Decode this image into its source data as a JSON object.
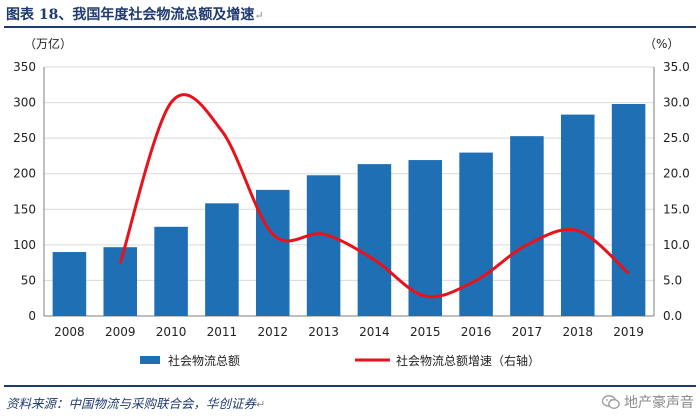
{
  "header": {
    "title": "图表 18、我国年度社会物流总额及增速"
  },
  "footer": {
    "source": "资料来源：中国物流与采购联合会，华创证券",
    "watermark": "地产豪声音"
  },
  "colors": {
    "bar": "#1f6fb5",
    "line": "#e8131a",
    "grid": "#d9d9d9",
    "axis": "#7f7f7f"
  },
  "chart_data": {
    "type": "bar",
    "categories": [
      "2008",
      "2009",
      "2010",
      "2011",
      "2012",
      "2013",
      "2014",
      "2015",
      "2016",
      "2017",
      "2018",
      "2019"
    ],
    "left_axis_unit": "（万亿）",
    "right_axis_unit": "（%）",
    "ylim_left": [
      0,
      350
    ],
    "ylim_right": [
      0,
      35
    ],
    "yticks_left": [
      "0",
      "50",
      "100",
      "150",
      "200",
      "250",
      "300",
      "350"
    ],
    "yticks_right": [
      "0.0",
      "5.0",
      "10.0",
      "15.0",
      "20.0",
      "25.0",
      "30.0",
      "35.0"
    ],
    "grid": true,
    "legend_position": "bottom",
    "series": [
      {
        "name": "社会物流总额",
        "type": "bar",
        "axis": "left",
        "values": [
          89.9,
          96.7,
          125.4,
          158.4,
          177.3,
          197.8,
          213.5,
          219.2,
          229.7,
          252.8,
          283.1,
          298.0
        ]
      },
      {
        "name": "社会物流总额增速（右轴）",
        "type": "line",
        "axis": "right",
        "x": [
          "2009",
          "2010",
          "2011",
          "2012",
          "2013",
          "2014",
          "2015",
          "2016",
          "2017",
          "2018",
          "2019"
        ],
        "values": [
          7.4,
          30.0,
          26.0,
          11.5,
          11.5,
          7.9,
          2.8,
          5.0,
          10.0,
          12.0,
          6.0
        ]
      }
    ]
  }
}
